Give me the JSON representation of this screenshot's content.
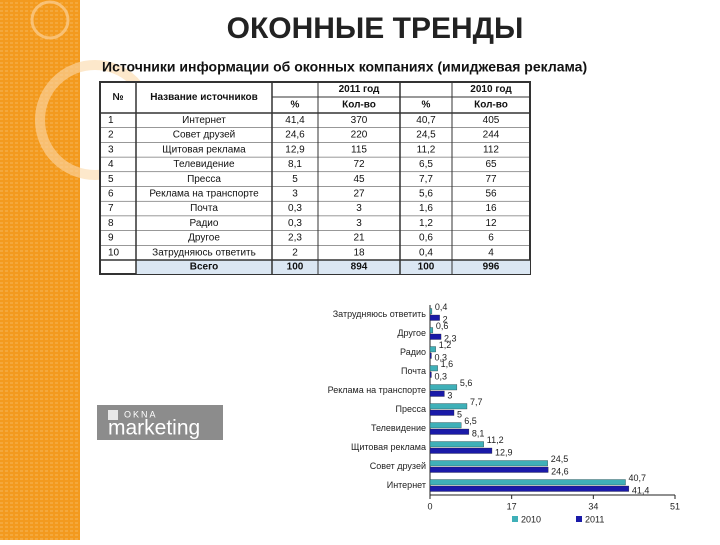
{
  "header": {
    "title": "ОКОННЫЕ ТРЕНДЫ",
    "subtitle": "Источники информации об оконных компаниях (имиджевая реклама)"
  },
  "table": {
    "columns": [
      "№",
      "Название источников",
      "2011 год",
      "2010 год"
    ],
    "subcolumns": [
      "%",
      "Кол-во",
      "%",
      "Кол-во"
    ],
    "rows": [
      [
        "1",
        "Интернет",
        "41,4",
        "370",
        "40,7",
        "405"
      ],
      [
        "2",
        "Совет друзей",
        "24,6",
        "220",
        "24,5",
        "244"
      ],
      [
        "3",
        "Щитовая реклама",
        "12,9",
        "115",
        "11,2",
        "112"
      ],
      [
        "4",
        "Телевидение",
        "8,1",
        "72",
        "6,5",
        "65"
      ],
      [
        "5",
        "Пресса",
        "5",
        "45",
        "7,7",
        "77"
      ],
      [
        "6",
        "Реклама на транспорте",
        "3",
        "27",
        "5,6",
        "56"
      ],
      [
        "7",
        "Почта",
        "0,3",
        "3",
        "1,6",
        "16"
      ],
      [
        "8",
        "Радио",
        "0,3",
        "3",
        "1,2",
        "12"
      ],
      [
        "9",
        "Другое",
        "2,3",
        "21",
        "0,6",
        "6"
      ],
      [
        "10",
        "Затрудняюсь ответить",
        "2",
        "18",
        "0,4",
        "4"
      ]
    ],
    "total": [
      "Всего",
      "100",
      "894",
      "100",
      "996"
    ]
  },
  "logo": {
    "top": "OKNA",
    "bottom": "marketing"
  },
  "chart_data": {
    "type": "bar",
    "orientation": "horizontal",
    "categories": [
      "Интернет",
      "Совет друзей",
      "Щитовая реклама",
      "Телевидение",
      "Пресса",
      "Реклама на транспорте",
      "Почта",
      "Радио",
      "Другое",
      "Затрудняюсь ответить"
    ],
    "series": [
      {
        "name": "2010",
        "color": "#3fb0b8",
        "values": [
          40.7,
          24.5,
          11.2,
          6.5,
          7.7,
          5.6,
          1.6,
          1.2,
          0.6,
          0.4
        ],
        "value_labels": [
          "40,7",
          "24,5",
          "11,2",
          "6,5",
          "7,7",
          "5,6",
          "1,6",
          "1,2",
          "0,6",
          "0,4"
        ]
      },
      {
        "name": "2011",
        "color": "#1a1aa8",
        "values": [
          41.4,
          24.6,
          12.9,
          8.1,
          5,
          3,
          0.3,
          0.3,
          2.3,
          2
        ],
        "value_labels": [
          "41,4",
          "24,6",
          "12,9",
          "8,1",
          "5",
          "3",
          "0,3",
          "0,3",
          "2,3",
          "2"
        ]
      }
    ],
    "xlim": [
      0,
      51
    ],
    "xticks": [
      0,
      17,
      34,
      51
    ],
    "legend": "bottom"
  }
}
